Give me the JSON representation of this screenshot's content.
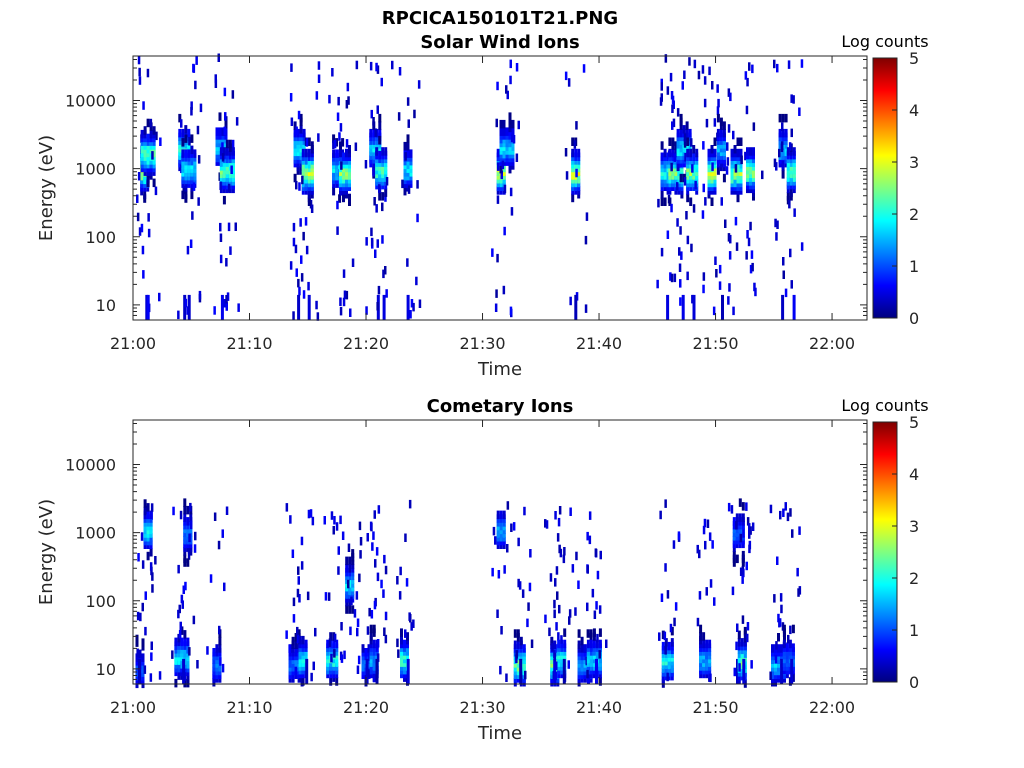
{
  "figure_title": "RPCICA150101T21.PNG",
  "colormap": {
    "name": "jet",
    "stops": [
      "#00007f",
      "#0000ff",
      "#00ffff",
      "#ffff00",
      "#ff0000",
      "#7f0000"
    ]
  },
  "chart_data": [
    {
      "type": "heatmap",
      "title": "Solar Wind Ions",
      "xlabel": "Time",
      "ylabel": "Energy (eV)",
      "x_ticks": [
        "21:00",
        "21:10",
        "21:20",
        "21:30",
        "21:40",
        "21:50",
        "22:00"
      ],
      "x_range_minutes": [
        0,
        63
      ],
      "y_ticks": [
        "10",
        "100",
        "1000",
        "10000"
      ],
      "y_scale": "log",
      "y_range_eV": [
        6,
        45000
      ],
      "colorbar": {
        "label": "Log counts",
        "ticks": [
          "0",
          "1",
          "2",
          "3",
          "4",
          "5"
        ],
        "range": [
          0,
          5
        ]
      },
      "grid": false,
      "sweeps": [
        {
          "t": 1.0,
          "peak_eV": 1000,
          "peak": 3.1
        },
        {
          "t": 1.3,
          "peak_eV": 1700,
          "peak": 2.4
        },
        {
          "t": 4.4,
          "peak_eV": 2000,
          "peak": 2.0
        },
        {
          "t": 4.8,
          "peak_eV": 1000,
          "peak": 1.8
        },
        {
          "t": 7.6,
          "peak_eV": 2100,
          "peak": 1.6
        },
        {
          "t": 8.1,
          "peak_eV": 950,
          "peak": 2.4
        },
        {
          "t": 14.3,
          "peak_eV": 2000,
          "peak": 1.8
        },
        {
          "t": 15.0,
          "peak_eV": 900,
          "peak": 2.9
        },
        {
          "t": 17.6,
          "peak_eV": 1000,
          "peak": 1.7
        },
        {
          "t": 18.2,
          "peak_eV": 900,
          "peak": 2.5
        },
        {
          "t": 20.8,
          "peak_eV": 2000,
          "peak": 1.7
        },
        {
          "t": 21.3,
          "peak_eV": 950,
          "peak": 2.2
        },
        {
          "t": 23.6,
          "peak_eV": 1000,
          "peak": 1.8
        },
        {
          "t": 31.6,
          "peak_eV": 900,
          "peak": 2.8
        },
        {
          "t": 32.1,
          "peak_eV": 2100,
          "peak": 1.7
        },
        {
          "t": 38.0,
          "peak_eV": 900,
          "peak": 2.9
        },
        {
          "t": 45.8,
          "peak_eV": 900,
          "peak": 2.0
        },
        {
          "t": 46.6,
          "peak_eV": 900,
          "peak": 2.4
        },
        {
          "t": 47.3,
          "peak_eV": 2000,
          "peak": 1.8
        },
        {
          "t": 48.0,
          "peak_eV": 900,
          "peak": 2.5
        },
        {
          "t": 49.7,
          "peak_eV": 900,
          "peak": 2.9
        },
        {
          "t": 50.5,
          "peak_eV": 2000,
          "peak": 1.5
        },
        {
          "t": 51.8,
          "peak_eV": 900,
          "peak": 2.6
        },
        {
          "t": 53.0,
          "peak_eV": 950,
          "peak": 2.5
        },
        {
          "t": 55.8,
          "peak_eV": 2000,
          "peak": 1.6
        },
        {
          "t": 56.5,
          "peak_eV": 950,
          "peak": 2.4
        }
      ],
      "seed": 11
    },
    {
      "type": "heatmap",
      "title": "Cometary Ions",
      "xlabel": "Time",
      "ylabel": "Energy (eV)",
      "x_ticks": [
        "21:00",
        "21:10",
        "21:20",
        "21:30",
        "21:40",
        "21:50",
        "22:00"
      ],
      "x_range_minutes": [
        0,
        63
      ],
      "y_ticks": [
        "10",
        "100",
        "1000",
        "10000"
      ],
      "y_scale": "log",
      "y_range_eV": [
        6,
        45000
      ],
      "colorbar": {
        "label": "Log counts",
        "ticks": [
          "0",
          "1",
          "2",
          "3",
          "4",
          "5"
        ],
        "range": [
          0,
          5
        ]
      },
      "grid": false,
      "sweeps": [
        {
          "t": 0.6,
          "peak_eV": 10,
          "peak": 1.0
        },
        {
          "t": 1.3,
          "peak_eV": 1100,
          "peak": 1.8
        },
        {
          "t": 4.2,
          "peak_eV": 15,
          "peak": 1.8
        },
        {
          "t": 4.7,
          "peak_eV": 1000,
          "peak": 1.2
        },
        {
          "t": 7.2,
          "peak_eV": 12,
          "peak": 1.2
        },
        {
          "t": 14.0,
          "peak_eV": 12,
          "peak": 1.2
        },
        {
          "t": 14.6,
          "peak_eV": 14,
          "peak": 1.9
        },
        {
          "t": 17.1,
          "peak_eV": 14,
          "peak": 2.0
        },
        {
          "t": 18.6,
          "peak_eV": 180,
          "peak": 1.8
        },
        {
          "t": 20.0,
          "peak_eV": 12,
          "peak": 1.2
        },
        {
          "t": 20.7,
          "peak_eV": 14,
          "peak": 1.5
        },
        {
          "t": 23.3,
          "peak_eV": 14,
          "peak": 2.2
        },
        {
          "t": 31.6,
          "peak_eV": 1100,
          "peak": 1.5
        },
        {
          "t": 33.2,
          "peak_eV": 12,
          "peak": 2.4
        },
        {
          "t": 36.2,
          "peak_eV": 12,
          "peak": 2.5
        },
        {
          "t": 36.8,
          "peak_eV": 14,
          "peak": 2.0
        },
        {
          "t": 38.8,
          "peak_eV": 12,
          "peak": 1.4
        },
        {
          "t": 39.6,
          "peak_eV": 14,
          "peak": 1.7
        },
        {
          "t": 45.9,
          "peak_eV": 13,
          "peak": 1.9
        },
        {
          "t": 49.1,
          "peak_eV": 14,
          "peak": 1.5
        },
        {
          "t": 52.0,
          "peak_eV": 1000,
          "peak": 1.1
        },
        {
          "t": 52.3,
          "peak_eV": 13,
          "peak": 2.3
        },
        {
          "t": 55.4,
          "peak_eV": 12,
          "peak": 1.6
        },
        {
          "t": 56.3,
          "peak_eV": 14,
          "peak": 1.2
        }
      ],
      "seed": 29
    }
  ]
}
